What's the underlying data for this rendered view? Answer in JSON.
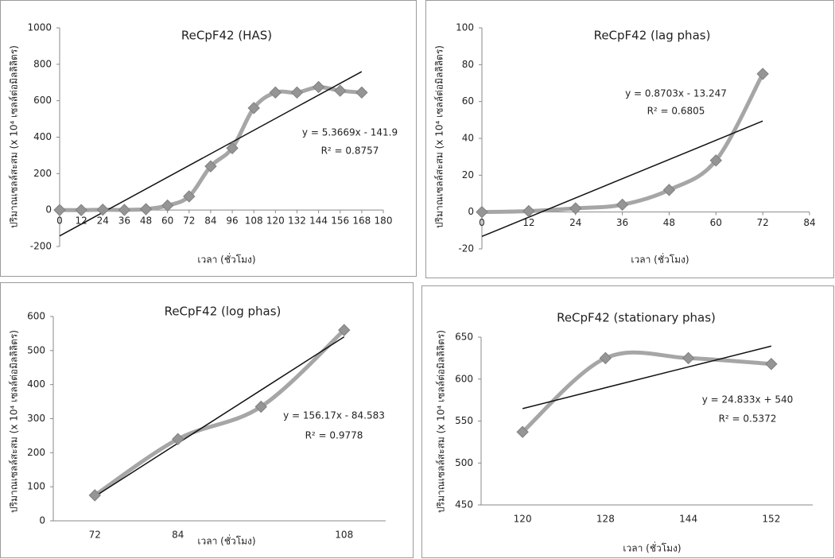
{
  "chart_data": [
    {
      "type": "line",
      "title": "ReCpF42 (HAS)",
      "x_label": "เวลา (ชั่วโมง)",
      "y_label": "ปริมาณเซลล์สะสม (x 10⁴ เซลล์ต่อมิลลิลิตร)",
      "annotations": [
        "y = 5.3669x - 141.9",
        "R² = 0.8757"
      ],
      "x": [
        0,
        12,
        24,
        36,
        48,
        60,
        72,
        84,
        96,
        108,
        120,
        132,
        144,
        156,
        168
      ],
      "values": [
        0,
        0,
        2,
        1,
        5,
        25,
        75,
        240,
        340,
        560,
        645,
        645,
        675,
        655,
        645
      ],
      "color": "#a6a6a6",
      "marker_color": "#959595",
      "smooth": true,
      "xlim": [
        0,
        180
      ],
      "xticks": [
        0,
        12,
        24,
        36,
        48,
        60,
        72,
        84,
        96,
        108,
        120,
        132,
        144,
        156,
        168,
        180
      ],
      "ylim": [
        -200,
        1000
      ],
      "yticks": [
        -200,
        0,
        200,
        400,
        600,
        800,
        1000
      ],
      "trendline": {
        "x": [
          0,
          168
        ],
        "values": [
          -141.9,
          759.7
        ],
        "color": "#111111"
      }
    },
    {
      "type": "line",
      "title": "ReCpF42 (lag phas)",
      "x_label": "เวลา (ชั่วโมง)",
      "y_label": "ปริมาณเซลล์สะสม (x 10⁴ เซลล์ต่อมิลลิลิตร)",
      "annotations": [
        "y = 0.8703x - 13.247",
        "R² = 0.6805"
      ],
      "x": [
        0,
        12,
        24,
        36,
        48,
        60,
        72
      ],
      "values": [
        0,
        0.5,
        2,
        4,
        12,
        28,
        75
      ],
      "color": "#a6a6a6",
      "marker_color": "#959595",
      "smooth": true,
      "xlim": [
        0,
        84
      ],
      "xticks": [
        0,
        12,
        24,
        36,
        48,
        60,
        72,
        84
      ],
      "ylim": [
        -20,
        100
      ],
      "yticks": [
        -20,
        0,
        20,
        40,
        60,
        80,
        100
      ],
      "trendline": {
        "x": [
          0,
          72
        ],
        "values": [
          -13.247,
          49.4
        ],
        "color": "#111111"
      }
    },
    {
      "type": "line",
      "title": "ReCpF42 (log phas)",
      "x_label": "เวลา (ชั่วโมง)",
      "y_label": "ปริมาณเซลล์สะสม (x 10⁴ เซลล์ต่อมิลลิลิตร)",
      "annotations": [
        "y = 156.17x - 84.583",
        "R² = 0.9778"
      ],
      "categories": [
        "72",
        "84",
        null,
        "108"
      ],
      "values": [
        75,
        240,
        335,
        560
      ],
      "color": "#a6a6a6",
      "marker_color": "#959595",
      "smooth": true,
      "ylim": [
        0,
        600
      ],
      "yticks": [
        0,
        100,
        200,
        300,
        400,
        500,
        600
      ],
      "trendline": {
        "values": [
          71.6,
          227.8,
          383.9,
          540.1
        ],
        "color": "#111111"
      }
    },
    {
      "type": "line",
      "title": "ReCpF42 (stationary phas)",
      "x_label": "เวลา (ชั่วโมง)",
      "y_label": "ปริมาณเซลล์สะสม (x 10⁴ เซลล์ต่อมิลลิลิตร)",
      "annotations": [
        "y = 24.833x + 540",
        "R² = 0.5372"
      ],
      "categories": [
        "120",
        "128",
        "144",
        "152"
      ],
      "values": [
        537,
        625,
        625,
        618
      ],
      "color": "#a6a6a6",
      "marker_color": "#959595",
      "smooth": true,
      "ylim": [
        450,
        650
      ],
      "yticks": [
        450,
        500,
        550,
        600,
        650
      ],
      "trendline": {
        "values": [
          564.8,
          589.7,
          614.5,
          639.3
        ],
        "color": "#111111"
      }
    }
  ]
}
